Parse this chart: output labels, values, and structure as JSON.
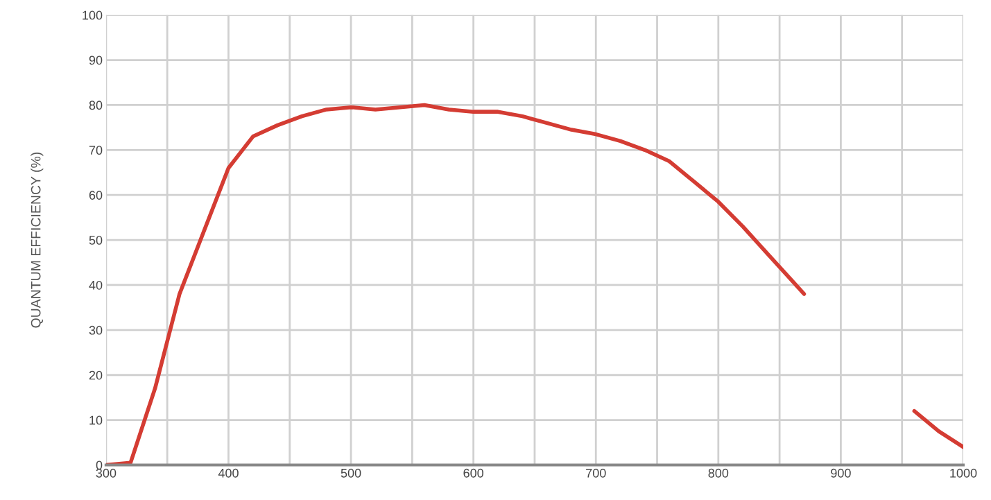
{
  "chart_data": {
    "type": "line",
    "ylabel": "QUANTUM EFFICIENCY (%)",
    "x": [
      300,
      320,
      340,
      360,
      380,
      400,
      420,
      440,
      460,
      480,
      500,
      520,
      540,
      560,
      580,
      600,
      620,
      640,
      660,
      680,
      700,
      720,
      740,
      760,
      780,
      800,
      820,
      840,
      860,
      870,
      880,
      890,
      900,
      910,
      920,
      930,
      940,
      950,
      960,
      980,
      1000
    ],
    "series": [
      {
        "color": "#d43c33",
        "values": [
          0,
          0.5,
          17,
          38,
          52,
          66,
          73,
          75.5,
          77.5,
          79,
          79.5,
          79,
          79.5,
          80,
          79,
          78.5,
          78.5,
          77.5,
          76,
          74.5,
          73.5,
          72,
          70,
          67.5,
          63,
          58.5,
          53,
          47,
          41,
          38,
          null,
          null,
          null,
          null,
          null,
          null,
          null,
          null,
          12,
          7.5,
          4
        ]
      }
    ],
    "xlim": [
      300,
      1000
    ],
    "xticks": [
      300,
      {
        "value": 350,
        "label": null
      },
      400,
      {
        "value": 450,
        "label": null
      },
      500,
      {
        "value": 550,
        "label": null
      },
      600,
      {
        "value": 650,
        "label": null
      },
      700,
      {
        "value": 750,
        "label": null
      },
      800,
      {
        "value": 850,
        "label": null
      },
      900,
      {
        "value": 950,
        "label": null
      },
      1000
    ],
    "ylim": [
      0,
      100
    ],
    "yticks": [
      0,
      10,
      20,
      30,
      40,
      50,
      60,
      70,
      80,
      90,
      100
    ],
    "grid": true,
    "marker": "none",
    "line_style": "solid"
  }
}
